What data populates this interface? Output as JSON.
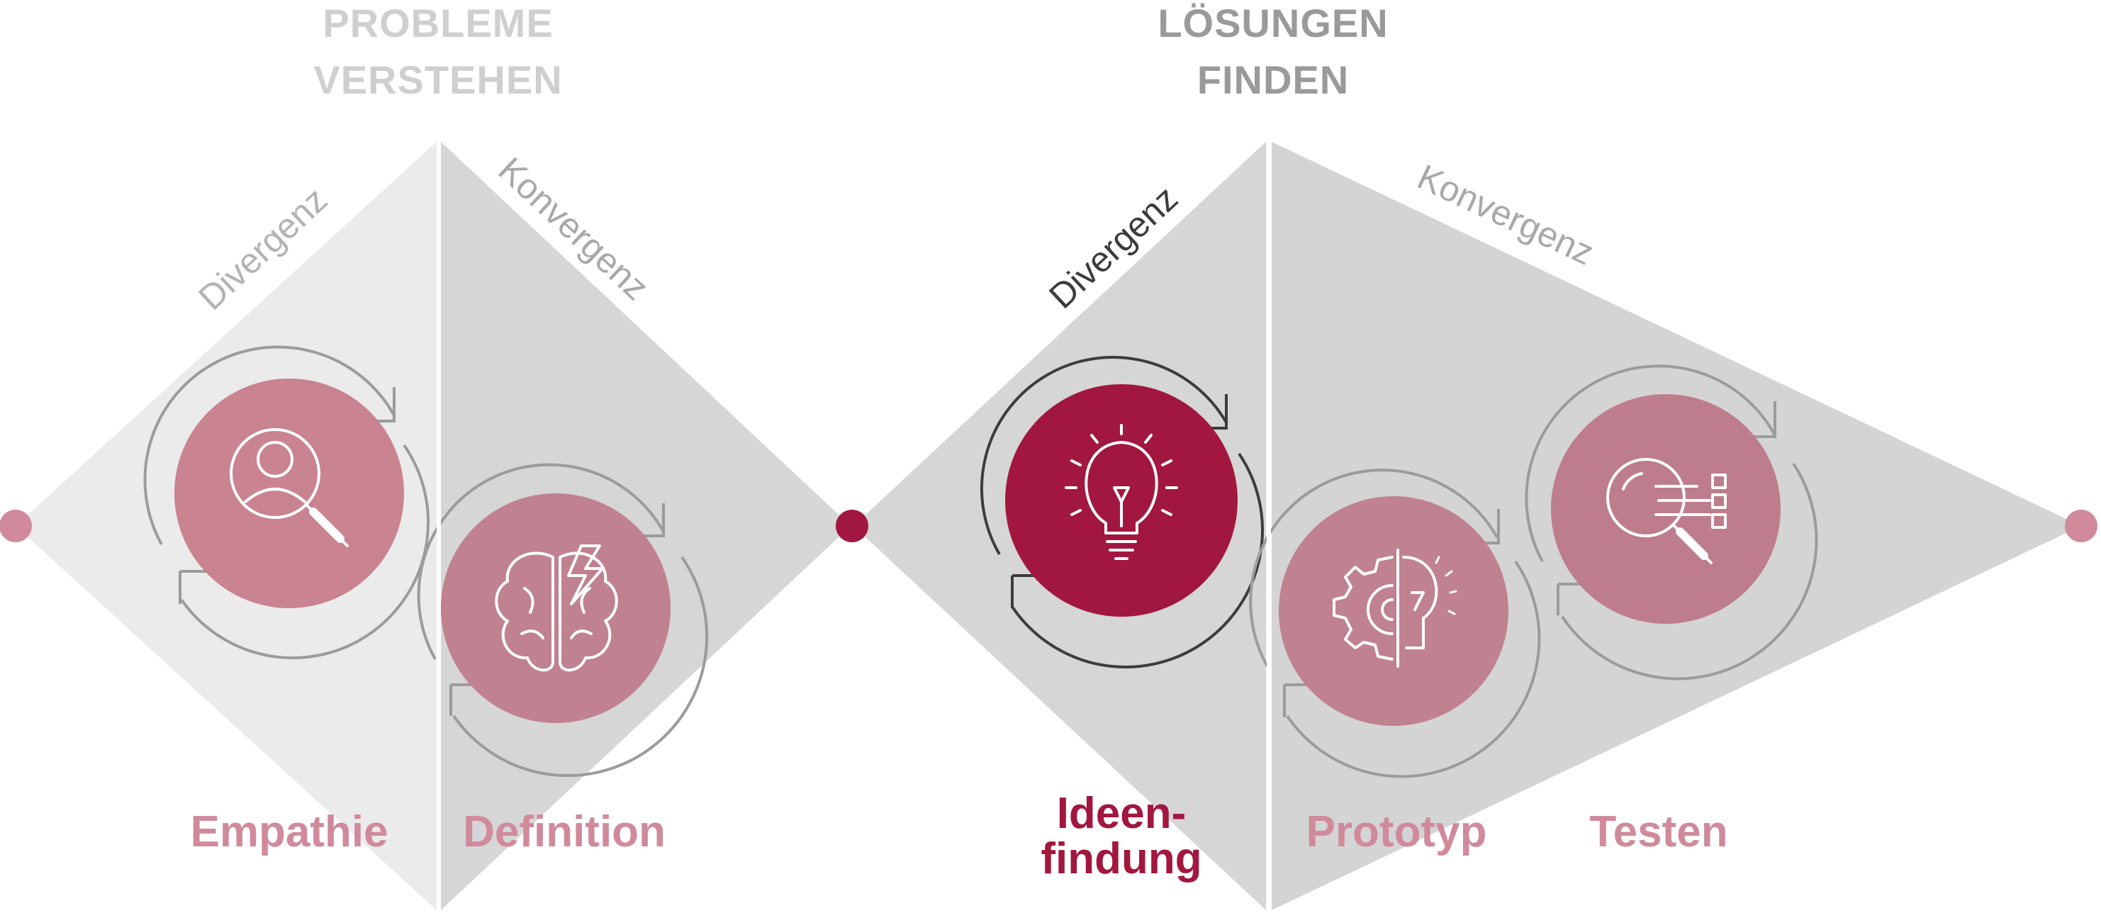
{
  "phases": [
    {
      "title_line1": "PROBLEME",
      "title_line2": "VERSTEHEN"
    },
    {
      "title_line1": "LÖSUNGEN",
      "title_line2": "FINDEN"
    }
  ],
  "diamond_labels": {
    "divergenz_1": "Divergenz",
    "konvergenz_1": "Konvergenz",
    "divergenz_2": "Divergenz",
    "konvergenz_2": "Konvergenz"
  },
  "steps": {
    "empathie": {
      "label": "Empathie",
      "icon": "magnifier-person-icon"
    },
    "definition": {
      "label": "Definition",
      "icon": "brain-lightning-icon"
    },
    "ideenfindung": {
      "label_line1": "Ideen-",
      "label_line2": "findung",
      "icon": "lightbulb-icon",
      "active": true
    },
    "prototyp": {
      "label": "Prototyp",
      "icon": "gear-bulb-icon"
    },
    "testen": {
      "label": "Testen",
      "icon": "magnifier-checklist-icon"
    }
  },
  "colors": {
    "accent": "#a2173f",
    "pink_circle": "#c98391",
    "pink_label": "#d08a9c",
    "light_gray": "#ebebeb",
    "mid_gray": "#d6d6d6",
    "title_light": "#cfcfcf",
    "title_dark": "#9a9a9a",
    "arrow_gray": "#9b9b9b",
    "arrow_dark": "#3c3c3c"
  }
}
